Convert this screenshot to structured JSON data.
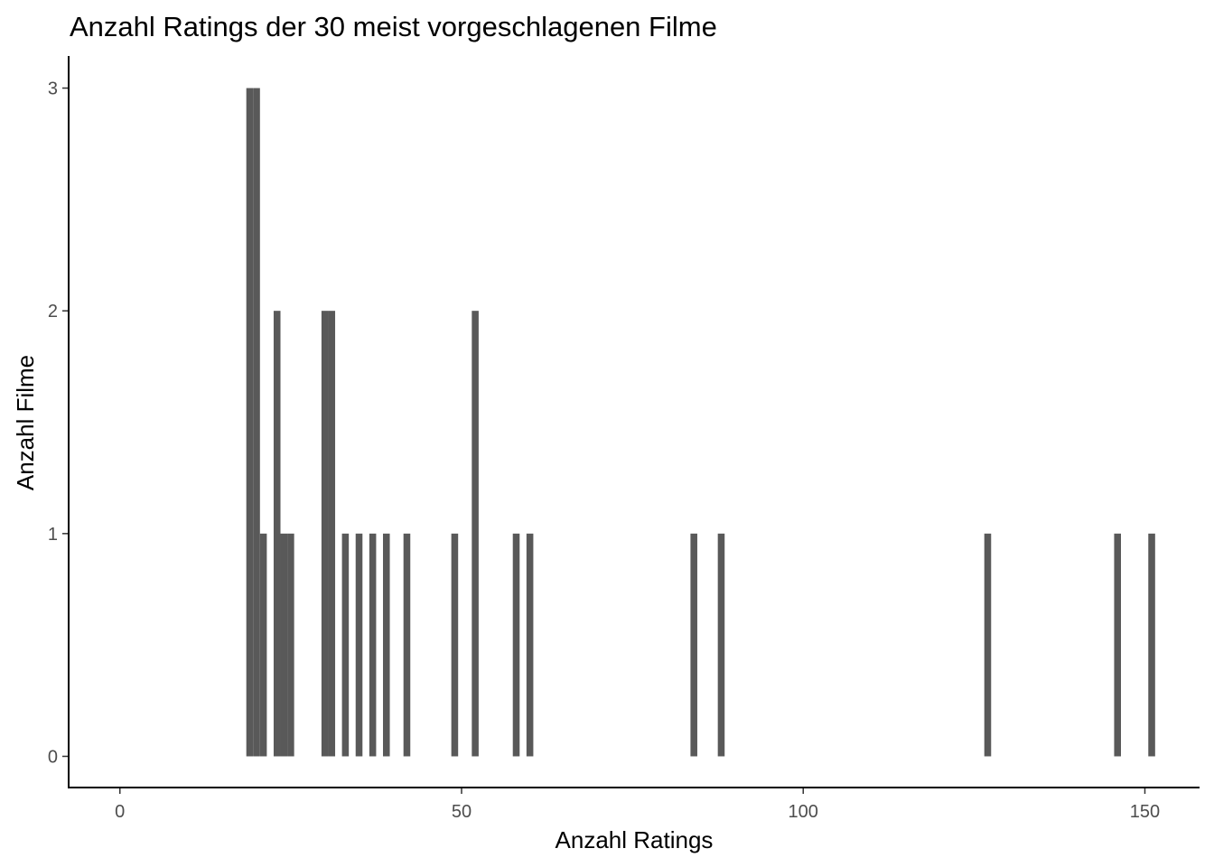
{
  "chart_data": {
    "type": "bar",
    "title": "Anzahl Ratings der 30 meist vorgeschlagenen Filme",
    "xlabel": "Anzahl Ratings",
    "ylabel": "Anzahl Filme",
    "xlim": [
      -7.5,
      158
    ],
    "ylim": [
      -0.14,
      3.14
    ],
    "x_ticks": [
      0,
      50,
      100,
      150
    ],
    "y_ticks": [
      0,
      1,
      2,
      3
    ],
    "bar_width": 1,
    "bar_color": "#595959",
    "grid": false,
    "bars": [
      {
        "x": 19,
        "count": 3
      },
      {
        "x": 20,
        "count": 3
      },
      {
        "x": 21,
        "count": 1
      },
      {
        "x": 23,
        "count": 2
      },
      {
        "x": 24,
        "count": 1
      },
      {
        "x": 25,
        "count": 1
      },
      {
        "x": 30,
        "count": 2
      },
      {
        "x": 31,
        "count": 2
      },
      {
        "x": 33,
        "count": 1
      },
      {
        "x": 35,
        "count": 1
      },
      {
        "x": 37,
        "count": 1
      },
      {
        "x": 39,
        "count": 1
      },
      {
        "x": 42,
        "count": 1
      },
      {
        "x": 49,
        "count": 1
      },
      {
        "x": 52,
        "count": 2
      },
      {
        "x": 58,
        "count": 1
      },
      {
        "x": 60,
        "count": 1
      },
      {
        "x": 84,
        "count": 1
      },
      {
        "x": 88,
        "count": 1
      },
      {
        "x": 127,
        "count": 1
      },
      {
        "x": 146,
        "count": 1
      },
      {
        "x": 151,
        "count": 1
      }
    ]
  }
}
